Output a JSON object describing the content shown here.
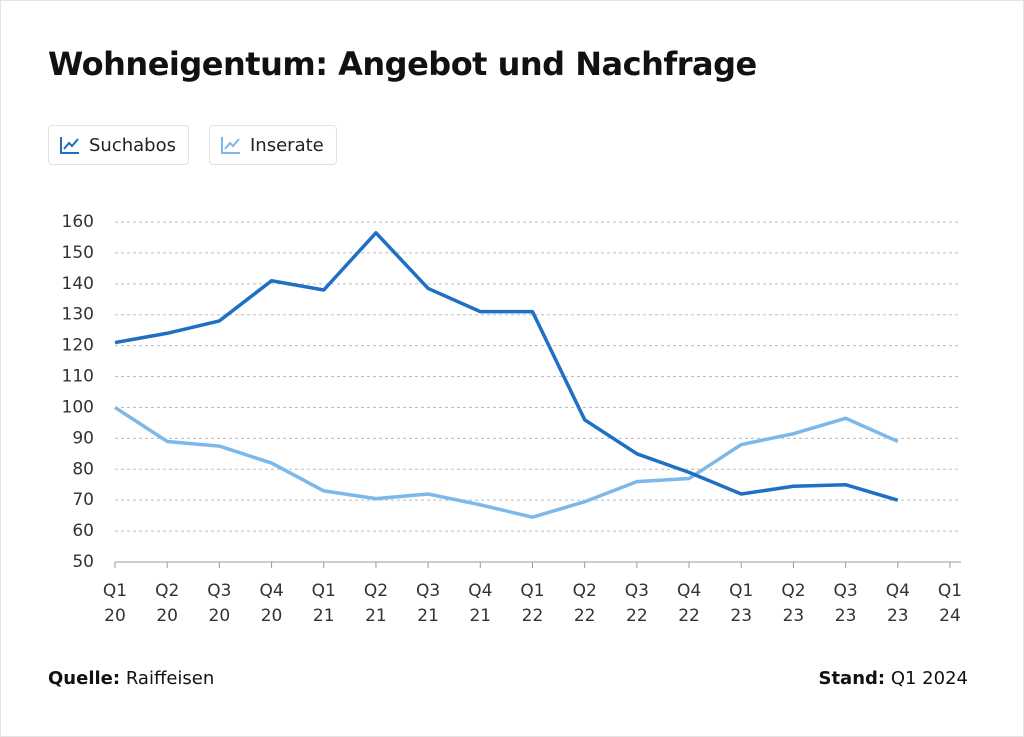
{
  "chart_data": {
    "type": "line",
    "title": "Wohneigentum: Angebot und Nachfrage",
    "categories": [
      "Q1 20",
      "Q2 20",
      "Q3 20",
      "Q4 20",
      "Q1 21",
      "Q2 21",
      "Q3 21",
      "Q4 21",
      "Q1 22",
      "Q2 22",
      "Q3 22",
      "Q4 22",
      "Q1 23",
      "Q2 23",
      "Q3 23",
      "Q4 23",
      "Q1 24"
    ],
    "series": [
      {
        "name": "Suchabos",
        "color": "#1f6fc5",
        "values": [
          121,
          124,
          128,
          141,
          138,
          156.5,
          138.5,
          131,
          131,
          96,
          85,
          79,
          72,
          74.5,
          75,
          70,
          null
        ]
      },
      {
        "name": "Inserate",
        "color": "#7db8ea",
        "values": [
          100,
          89,
          87.5,
          82,
          73,
          70.5,
          72,
          68.5,
          64.5,
          69.5,
          76,
          77,
          88,
          91.5,
          96.5,
          89,
          null
        ]
      }
    ],
    "ylim": [
      50,
      160
    ],
    "yticks": [
      50,
      60,
      70,
      80,
      90,
      100,
      110,
      120,
      130,
      140,
      150,
      160
    ],
    "grid": true
  },
  "footer": {
    "source_label": "Quelle:",
    "source": "Raiffeisen",
    "date_label": "Stand:",
    "date": "Q1 2024"
  }
}
